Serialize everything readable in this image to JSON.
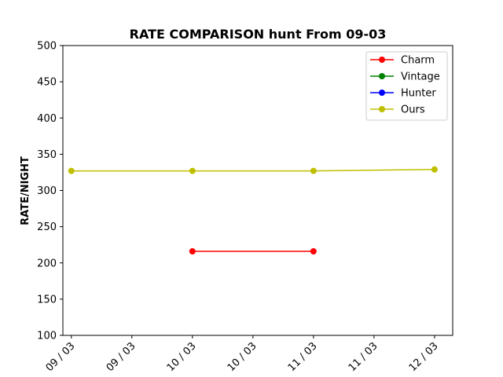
{
  "chart_data": {
    "type": "line",
    "title": "RATE COMPARISON hunt From 09-03",
    "xlabel": "",
    "ylabel": "RATE/NIGHT",
    "x_tick_labels": [
      "09 / 03",
      "09 / 03",
      "10 / 03",
      "10 / 03",
      "11 / 03",
      "11 / 03",
      "12 / 03"
    ],
    "x_ticks": [
      9,
      9.5,
      10,
      10.5,
      11,
      11.5,
      12
    ],
    "xlim": [
      8.93,
      12.15
    ],
    "ylim": [
      100,
      500
    ],
    "y_ticks": [
      100,
      150,
      200,
      250,
      300,
      350,
      400,
      450,
      500
    ],
    "grid": false,
    "legend_position": "top-right",
    "series": [
      {
        "name": "Charm",
        "color": "#ff0000",
        "x": [
          10,
          11
        ],
        "y": [
          216,
          216
        ]
      },
      {
        "name": "Vintage",
        "color": "#008000",
        "x": [],
        "y": []
      },
      {
        "name": "Hunter",
        "color": "#0000ff",
        "x": [],
        "y": []
      },
      {
        "name": "Ours",
        "color": "#bfbf00",
        "x": [
          9,
          10,
          11,
          12
        ],
        "y": [
          327,
          327,
          327,
          329
        ]
      }
    ]
  }
}
